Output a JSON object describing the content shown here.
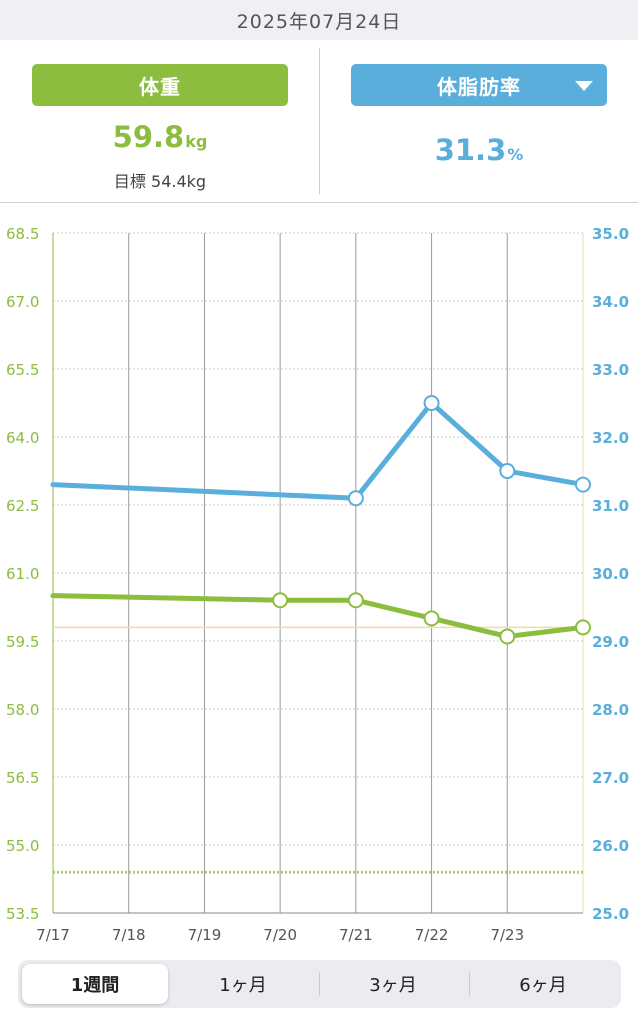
{
  "header": {
    "date": "2025年07月24日"
  },
  "summary": {
    "left": {
      "title": "体重",
      "value": "59.8",
      "unit": "kg",
      "goal_label": "目標",
      "goal_value": "54.4kg"
    },
    "right": {
      "title": "体脂肪率",
      "value": "31.3",
      "unit": "%"
    }
  },
  "chart_data": {
    "type": "line",
    "x": [
      "7/17",
      "7/18",
      "7/19",
      "7/20",
      "7/21",
      "7/22",
      "7/23",
      "7/24"
    ],
    "x_tick_labels": [
      "7/17",
      "7/18",
      "7/19",
      "7/20",
      "7/21",
      "7/22",
      "7/23"
    ],
    "y_left": {
      "min": 53.5,
      "max": 68.5,
      "ticks": [
        "53.5",
        "55.0",
        "56.5",
        "58.0",
        "59.5",
        "61.0",
        "62.5",
        "64.0",
        "65.5",
        "67.0",
        "68.5"
      ],
      "color": "#8cbd3f"
    },
    "y_right": {
      "min": 25.0,
      "max": 35.0,
      "ticks": [
        "25.0",
        "26.0",
        "27.0",
        "28.0",
        "29.0",
        "30.0",
        "31.0",
        "32.0",
        "33.0",
        "34.0",
        "35.0"
      ],
      "color": "#5aaedc"
    },
    "series": [
      {
        "axis": "left",
        "color": "#8cbd3f",
        "line_start": 60.5,
        "points": [
          {
            "x": "7/20",
            "y": 60.4
          },
          {
            "x": "7/21",
            "y": 60.4
          },
          {
            "x": "7/22",
            "y": 60.0
          },
          {
            "x": "7/23",
            "y": 59.6
          },
          {
            "x": "7/24",
            "y": 59.8
          }
        ]
      },
      {
        "axis": "right",
        "color": "#5aaedc",
        "line_start": 31.3,
        "points": [
          {
            "x": "7/21",
            "y": 31.1
          },
          {
            "x": "7/22",
            "y": 32.5
          },
          {
            "x": "7/23",
            "y": 31.5
          },
          {
            "x": "7/24",
            "y": 31.3
          }
        ]
      }
    ],
    "reference_lines": [
      {
        "axis": "left",
        "value": 59.8,
        "style": "solid",
        "color": "#f0dca0"
      },
      {
        "axis": "left",
        "value": 54.4,
        "style": "dotted",
        "color": "#a8d070"
      }
    ],
    "grid": true
  },
  "period_tabs": [
    {
      "label": "1週間",
      "active": true
    },
    {
      "label": "1ヶ月",
      "active": false
    },
    {
      "label": "3ヶ月",
      "active": false
    },
    {
      "label": "6ヶ月",
      "active": false
    }
  ]
}
